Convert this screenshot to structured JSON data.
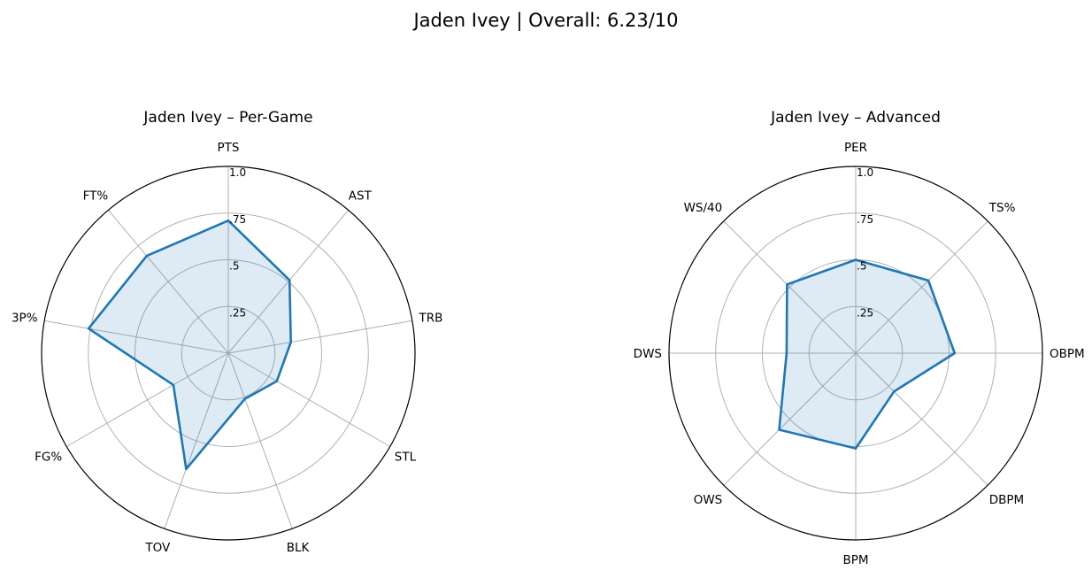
{
  "figure": {
    "title": "Jaden Ivey | Overall: 6.23/10"
  },
  "chart_data": [
    {
      "type": "radar",
      "title": "Jaden Ivey – Per-Game",
      "categories": [
        "PTS",
        "AST",
        "TRB",
        "STL",
        "BLK",
        "TOV",
        "FG%",
        "3P%",
        "FT%"
      ],
      "series": [
        {
          "values": [
            0.71,
            0.51,
            0.34,
            0.3,
            0.26,
            0.66,
            0.34,
            0.76,
            0.68
          ]
        }
      ],
      "rlim": [
        0,
        1
      ],
      "rticks": [
        0.25,
        0.5,
        0.75,
        1.0
      ],
      "rtick_labels": [
        ".25",
        ".5",
        ".75",
        "1.0"
      ],
      "grid": true,
      "color": "#1f77b4"
    },
    {
      "type": "radar",
      "title": "Jaden Ivey – Advanced",
      "categories": [
        "PER",
        "TS%",
        "OBPM",
        "DBPM",
        "BPM",
        "OWS",
        "DWS",
        "WS/40"
      ],
      "series": [
        {
          "values": [
            0.5,
            0.55,
            0.53,
            0.29,
            0.51,
            0.58,
            0.37,
            0.52
          ]
        }
      ],
      "rlim": [
        0,
        1
      ],
      "rticks": [
        0.25,
        0.5,
        0.75,
        1.0
      ],
      "rtick_labels": [
        ".25",
        ".5",
        ".75",
        "1.0"
      ],
      "grid": true,
      "color": "#1f77b4"
    }
  ]
}
